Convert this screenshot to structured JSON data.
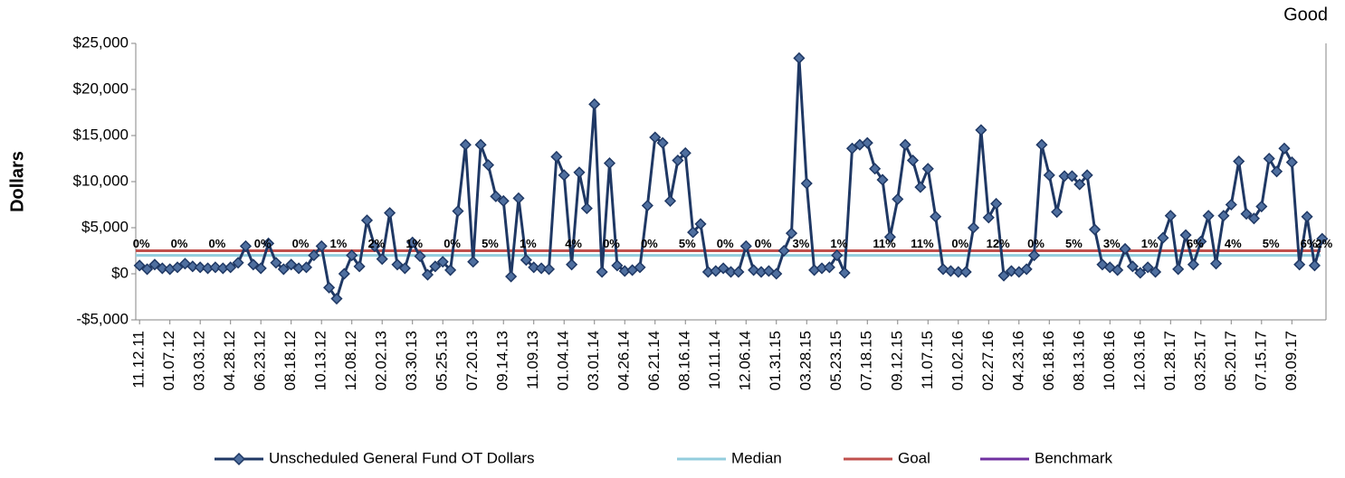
{
  "chart_data": {
    "type": "line",
    "annotation": "Good",
    "ylabel": "Dollars",
    "ylim": [
      -5000,
      25000
    ],
    "yticks": [
      {
        "value": -5000,
        "label": "-$5,000"
      },
      {
        "value": 0,
        "label": "$0"
      },
      {
        "value": 5000,
        "label": "$5,000"
      },
      {
        "value": 10000,
        "label": "$10,000"
      },
      {
        "value": 15000,
        "label": "$15,000"
      },
      {
        "value": 20000,
        "label": "$20,000"
      },
      {
        "value": 25000,
        "label": "$25,000"
      }
    ],
    "categories": [
      "11.12.11",
      null,
      null,
      null,
      "01.07.12",
      null,
      null,
      null,
      "03.03.12",
      null,
      null,
      null,
      "04.28.12",
      null,
      null,
      null,
      "06.23.12",
      null,
      null,
      null,
      "08.18.12",
      null,
      null,
      null,
      "10.13.12",
      null,
      null,
      null,
      "12.08.12",
      null,
      null,
      null,
      "02.02.13",
      null,
      null,
      null,
      "03.30.13",
      null,
      null,
      null,
      "05.25.13",
      null,
      null,
      null,
      "07.20.13",
      null,
      null,
      null,
      "09.14.13",
      null,
      null,
      null,
      "11.09.13",
      null,
      null,
      null,
      "01.04.14",
      null,
      null,
      null,
      "03.01.14",
      null,
      null,
      null,
      "04.26.14",
      null,
      null,
      null,
      "06.21.14",
      null,
      null,
      null,
      "08.16.14",
      null,
      null,
      null,
      "10.11.14",
      null,
      null,
      null,
      "12.06.14",
      null,
      null,
      null,
      "01.31.15",
      null,
      null,
      null,
      "03.28.15",
      null,
      null,
      null,
      "05.23.15",
      null,
      null,
      null,
      "07.18.15",
      null,
      null,
      null,
      "09.12.15",
      null,
      null,
      null,
      "11.07.15",
      null,
      null,
      null,
      "01.02.16",
      null,
      null,
      null,
      "02.27.16",
      null,
      null,
      null,
      "04.23.16",
      null,
      null,
      null,
      "06.18.16",
      null,
      null,
      null,
      "08.13.16",
      null,
      null,
      null,
      "10.08.16",
      null,
      null,
      null,
      "12.03.16",
      null,
      null,
      null,
      "01.28.17",
      null,
      null,
      null,
      "03.25.17",
      null,
      null,
      null,
      "05.20.17",
      null,
      null,
      null,
      "07.15.17",
      null,
      null,
      null,
      "09.09.17",
      null,
      null,
      null,
      null
    ],
    "series": [
      {
        "name": "Unscheduled General Fund OT Dollars",
        "color": "#1f3864",
        "marker_color": "#4f6f9f",
        "values": [
          900,
          500,
          1000,
          600,
          500,
          700,
          1100,
          800,
          700,
          600,
          700,
          600,
          700,
          1200,
          3000,
          1000,
          600,
          3300,
          1200,
          500,
          1000,
          600,
          700,
          2000,
          3000,
          -1500,
          -2700,
          0,
          2000,
          800,
          5800,
          3000,
          1600,
          6600,
          1000,
          600,
          3400,
          1900,
          -100,
          800,
          1300,
          400,
          6800,
          14000,
          1300,
          14000,
          11800,
          8400,
          7900,
          -300,
          8200,
          1500,
          700,
          600,
          500,
          12700,
          10700,
          1000,
          11000,
          7100,
          18400,
          200,
          12000,
          900,
          300,
          400,
          700,
          7400,
          14800,
          14200,
          7900,
          12300,
          13100,
          4500,
          5400,
          200,
          300,
          600,
          200,
          200,
          3000,
          400,
          200,
          300,
          0,
          2500,
          4400,
          23400,
          9800,
          400,
          600,
          700,
          2000,
          100,
          13600,
          14000,
          14200,
          11400,
          10200,
          4000,
          8100,
          14000,
          12300,
          9400,
          11400,
          6200,
          500,
          300,
          200,
          200,
          5000,
          15600,
          6100,
          7600,
          -200,
          300,
          200,
          500,
          2000,
          14000,
          10700,
          6700,
          10600,
          10600,
          9700,
          10700,
          4800,
          1000,
          700,
          400,
          2700,
          800,
          100,
          700,
          200,
          3900,
          6300,
          500,
          4200,
          1000,
          3500,
          6300,
          1100,
          6300,
          7500,
          12200,
          6500,
          6000,
          7300,
          12500,
          11100,
          13600,
          12100,
          1000,
          6200,
          900,
          3800
        ]
      }
    ],
    "percent_labels": [
      "0%",
      null,
      null,
      null,
      null,
      "0%",
      null,
      null,
      null,
      null,
      "0%",
      null,
      null,
      null,
      null,
      null,
      "0%",
      null,
      null,
      null,
      null,
      "0%",
      null,
      null,
      null,
      null,
      "1%",
      null,
      null,
      null,
      null,
      "2%",
      null,
      null,
      null,
      null,
      "1%",
      null,
      null,
      null,
      null,
      "0%",
      null,
      null,
      null,
      null,
      "5%",
      null,
      null,
      null,
      null,
      "1%",
      null,
      null,
      null,
      null,
      null,
      "4%",
      null,
      null,
      null,
      null,
      "0%",
      null,
      null,
      null,
      null,
      "0%",
      null,
      null,
      null,
      null,
      "5%",
      null,
      null,
      null,
      null,
      "0%",
      null,
      null,
      null,
      null,
      "0%",
      null,
      null,
      null,
      null,
      "3%",
      null,
      null,
      null,
      null,
      "1%",
      null,
      null,
      null,
      null,
      null,
      "11%",
      null,
      null,
      null,
      null,
      "11%",
      null,
      null,
      null,
      null,
      "0%",
      null,
      null,
      null,
      null,
      "12%",
      null,
      null,
      null,
      null,
      "0%",
      null,
      null,
      null,
      null,
      "5%",
      null,
      null,
      null,
      null,
      "3%",
      null,
      null,
      null,
      null,
      "1%",
      null,
      null,
      null,
      null,
      null,
      "6%",
      null,
      null,
      null,
      null,
      "4%",
      null,
      null,
      null,
      null,
      "5%",
      null,
      null,
      null,
      null,
      "6%",
      null,
      "2%"
    ],
    "reference_lines": [
      {
        "name": "Median",
        "color": "#93cddd",
        "value": 2000
      },
      {
        "name": "Goal",
        "color": "#c0504d",
        "value": 2500
      },
      {
        "name": "Benchmark",
        "color": "#7030a0",
        "value": null
      }
    ]
  }
}
